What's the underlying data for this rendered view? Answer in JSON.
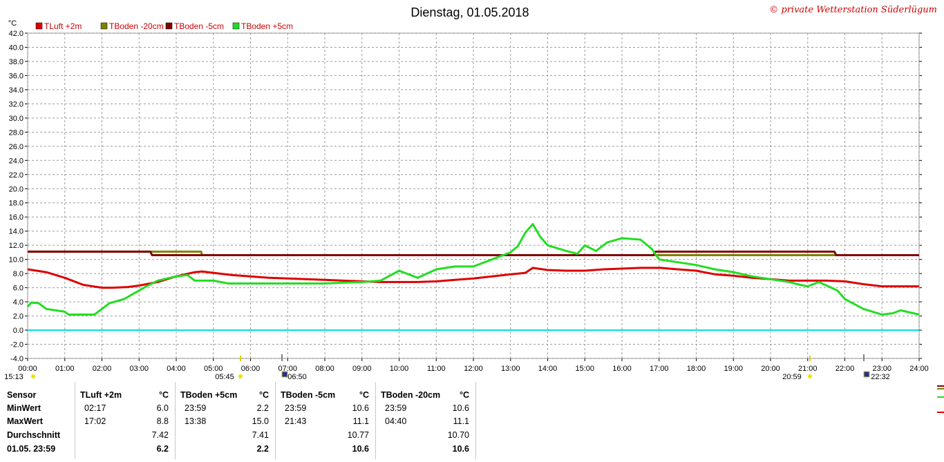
{
  "title": "Dienstag, 01.05.2018",
  "copyright": "© private Wetterstation Süderlügum",
  "chart_data": {
    "type": "line",
    "ylabel": "°C",
    "ylim": [
      -4,
      42
    ],
    "yticks": [
      "-4.0",
      "-2.0",
      "0.0",
      "2.0",
      "4.0",
      "6.0",
      "8.0",
      "10.0",
      "12.0",
      "14.0",
      "16.0",
      "18.0",
      "20.0",
      "22.0",
      "24.0",
      "26.0",
      "28.0",
      "30.0",
      "32.0",
      "34.0",
      "36.0",
      "38.0",
      "40.0",
      "42.0"
    ],
    "xlim": [
      0,
      24
    ],
    "xticks": [
      "00:00",
      "01:00",
      "02:00",
      "03:00",
      "04:00",
      "05:00",
      "06:00",
      "07:00",
      "08:00",
      "09:00",
      "10:00",
      "11:00",
      "12:00",
      "13:00",
      "14:00",
      "15:00",
      "16:00",
      "17:00",
      "18:00",
      "19:00",
      "20:00",
      "21:00",
      "22:00",
      "23:00",
      "24:00"
    ],
    "grid": true,
    "legend_placement": "top-left",
    "reference_line": {
      "y": 0,
      "color": "#00e0e0"
    },
    "series": [
      {
        "name": "TLuft +2m",
        "color": "#dd0000",
        "points": [
          [
            0,
            8.6
          ],
          [
            0.5,
            8.2
          ],
          [
            1,
            7.4
          ],
          [
            1.5,
            6.4
          ],
          [
            2,
            6.0
          ],
          [
            2.28,
            6.0
          ],
          [
            2.7,
            6.1
          ],
          [
            3,
            6.3
          ],
          [
            3.5,
            6.8
          ],
          [
            4,
            7.6
          ],
          [
            4.5,
            8.2
          ],
          [
            4.7,
            8.3
          ],
          [
            5,
            8.1
          ],
          [
            5.5,
            7.8
          ],
          [
            6,
            7.6
          ],
          [
            6.5,
            7.4
          ],
          [
            7,
            7.3
          ],
          [
            7.5,
            7.2
          ],
          [
            8,
            7.1
          ],
          [
            8.5,
            7.0
          ],
          [
            9,
            6.9
          ],
          [
            9.5,
            6.8
          ],
          [
            10,
            6.8
          ],
          [
            10.5,
            6.8
          ],
          [
            11,
            6.9
          ],
          [
            11.5,
            7.1
          ],
          [
            12,
            7.3
          ],
          [
            12.5,
            7.6
          ],
          [
            13,
            7.9
          ],
          [
            13.4,
            8.1
          ],
          [
            13.6,
            8.8
          ],
          [
            14,
            8.5
          ],
          [
            14.5,
            8.4
          ],
          [
            15,
            8.4
          ],
          [
            15.5,
            8.6
          ],
          [
            16,
            8.7
          ],
          [
            16.5,
            8.8
          ],
          [
            17.03,
            8.8
          ],
          [
            17.5,
            8.6
          ],
          [
            18,
            8.4
          ],
          [
            18.5,
            7.9
          ],
          [
            19,
            7.7
          ],
          [
            19.5,
            7.4
          ],
          [
            20,
            7.2
          ],
          [
            20.5,
            7.0
          ],
          [
            21,
            7.0
          ],
          [
            21.5,
            7.0
          ],
          [
            22,
            6.9
          ],
          [
            22.5,
            6.5
          ],
          [
            23,
            6.2
          ],
          [
            23.5,
            6.2
          ],
          [
            24,
            6.2
          ]
        ]
      },
      {
        "name": "TBoden -20cm",
        "color": "#808000",
        "points": [
          [
            0,
            11.1
          ],
          [
            3.3,
            11.1
          ],
          [
            3.35,
            11.1
          ],
          [
            4.67,
            11.1
          ],
          [
            4.7,
            10.6
          ],
          [
            16.9,
            10.6
          ],
          [
            17,
            10.6
          ],
          [
            21.7,
            10.6
          ],
          [
            21.75,
            10.6
          ],
          [
            24,
            10.6
          ]
        ]
      },
      {
        "name": "TBoden -5cm",
        "color": "#800000",
        "points": [
          [
            0,
            11.1
          ],
          [
            3.3,
            11.1
          ],
          [
            3.35,
            10.6
          ],
          [
            16.85,
            10.6
          ],
          [
            16.9,
            11.1
          ],
          [
            21.72,
            11.1
          ],
          [
            21.77,
            10.6
          ],
          [
            24,
            10.6
          ]
        ]
      },
      {
        "name": "TBoden +5cm",
        "color": "#22dd22",
        "points": [
          [
            0,
            3.3
          ],
          [
            0.1,
            3.9
          ],
          [
            0.3,
            3.8
          ],
          [
            0.5,
            3.0
          ],
          [
            1,
            2.6
          ],
          [
            1.1,
            2.2
          ],
          [
            1.8,
            2.2
          ],
          [
            2,
            3.0
          ],
          [
            2.2,
            3.8
          ],
          [
            2.6,
            4.4
          ],
          [
            2.8,
            5.0
          ],
          [
            3,
            5.6
          ],
          [
            3.2,
            6.2
          ],
          [
            3.5,
            7.0
          ],
          [
            4,
            7.6
          ],
          [
            4.3,
            7.8
          ],
          [
            4.5,
            7.0
          ],
          [
            5,
            7.0
          ],
          [
            5.4,
            6.6
          ],
          [
            7,
            6.6
          ],
          [
            8,
            6.6
          ],
          [
            8.5,
            6.7
          ],
          [
            9,
            6.8
          ],
          [
            9.5,
            7.0
          ],
          [
            10,
            8.4
          ],
          [
            10.5,
            7.4
          ],
          [
            11,
            8.6
          ],
          [
            11.5,
            9.0
          ],
          [
            12,
            9.0
          ],
          [
            12.5,
            10.0
          ],
          [
            13,
            11.0
          ],
          [
            13.2,
            11.9
          ],
          [
            13.4,
            13.8
          ],
          [
            13.6,
            15.0
          ],
          [
            13.8,
            13.2
          ],
          [
            14,
            12.0
          ],
          [
            14.5,
            11.2
          ],
          [
            14.8,
            10.8
          ],
          [
            15,
            12.0
          ],
          [
            15.3,
            11.2
          ],
          [
            15.6,
            12.4
          ],
          [
            16,
            13.0
          ],
          [
            16.5,
            12.8
          ],
          [
            16.8,
            11.5
          ],
          [
            17,
            10.0
          ],
          [
            17.5,
            9.6
          ],
          [
            18,
            9.2
          ],
          [
            18.5,
            8.6
          ],
          [
            19,
            8.2
          ],
          [
            19.5,
            7.6
          ],
          [
            20,
            7.2
          ],
          [
            20.5,
            6.8
          ],
          [
            20.8,
            6.4
          ],
          [
            21,
            6.2
          ],
          [
            21.3,
            6.8
          ],
          [
            21.8,
            5.6
          ],
          [
            22,
            4.4
          ],
          [
            22.5,
            3.0
          ],
          [
            23,
            2.2
          ],
          [
            23.3,
            2.4
          ],
          [
            23.5,
            2.8
          ],
          [
            24,
            2.2
          ]
        ]
      }
    ],
    "markers": [
      {
        "label": "15:13"
      },
      {
        "label": "05:45"
      },
      {
        "label": "06:50"
      },
      {
        "label": "20:59"
      },
      {
        "label": "22:32"
      }
    ]
  },
  "stats": {
    "header": {
      "sensor": "Sensor",
      "unit": "°C"
    },
    "row_labels": [
      "MinWert",
      "MaxWert",
      "Durchschnitt",
      "01.05. 23:59"
    ],
    "sensors": [
      {
        "name": "TLuft +2m",
        "min_time": "02:17",
        "min": "6.0",
        "max_time": "17:02",
        "max": "8.8",
        "avg": "7.42",
        "current": "6.2"
      },
      {
        "name": "TBoden +5cm",
        "min_time": "23:59",
        "min": "2.2",
        "max_time": "13:38",
        "max": "15.0",
        "avg": "7.41",
        "current": "2.2"
      },
      {
        "name": "TBoden -5cm",
        "min_time": "23:59",
        "min": "10.6",
        "max_time": "21:43",
        "max": "11.1",
        "avg": "10.77",
        "current": "10.6"
      },
      {
        "name": "TBoden -20cm",
        "min_time": "23:59",
        "min": "10.6",
        "max_time": "04:40",
        "max": "11.1",
        "avg": "10.70",
        "current": "10.6"
      }
    ]
  }
}
